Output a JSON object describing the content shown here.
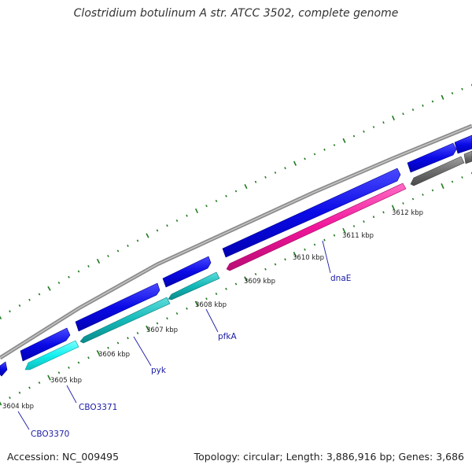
{
  "title": "Clostridium botulinum A str. ATCC 3502, complete genome",
  "footer": {
    "accession": "Accession: NC_009495",
    "topology": "Topology: circular; Length: 3,886,916 bp; Genes: 3,686"
  },
  "colors": {
    "backbone": "#8c8c8c",
    "forward_gene": "#0a0ae6",
    "reverse_cyan_light": "#14f0f0",
    "reverse_cyan_dark": "#13b8b8",
    "reverse_magenta": "#f0149a",
    "reverse_gray": "#6e6e6e",
    "tick": "#1f7a1f",
    "gene_label": "#1a1aa6"
  },
  "kbp_ticks": [
    "3604 kbp",
    "3605 kbp",
    "3606 kbp",
    "3607 kbp",
    "3608 kbp",
    "3609 kbp",
    "3610 kbp",
    "3611 kbp",
    "3612 kbp"
  ],
  "gene_labels": [
    "CBO3370",
    "CBO3371",
    "pyk",
    "pfkA",
    "dnaE"
  ]
}
